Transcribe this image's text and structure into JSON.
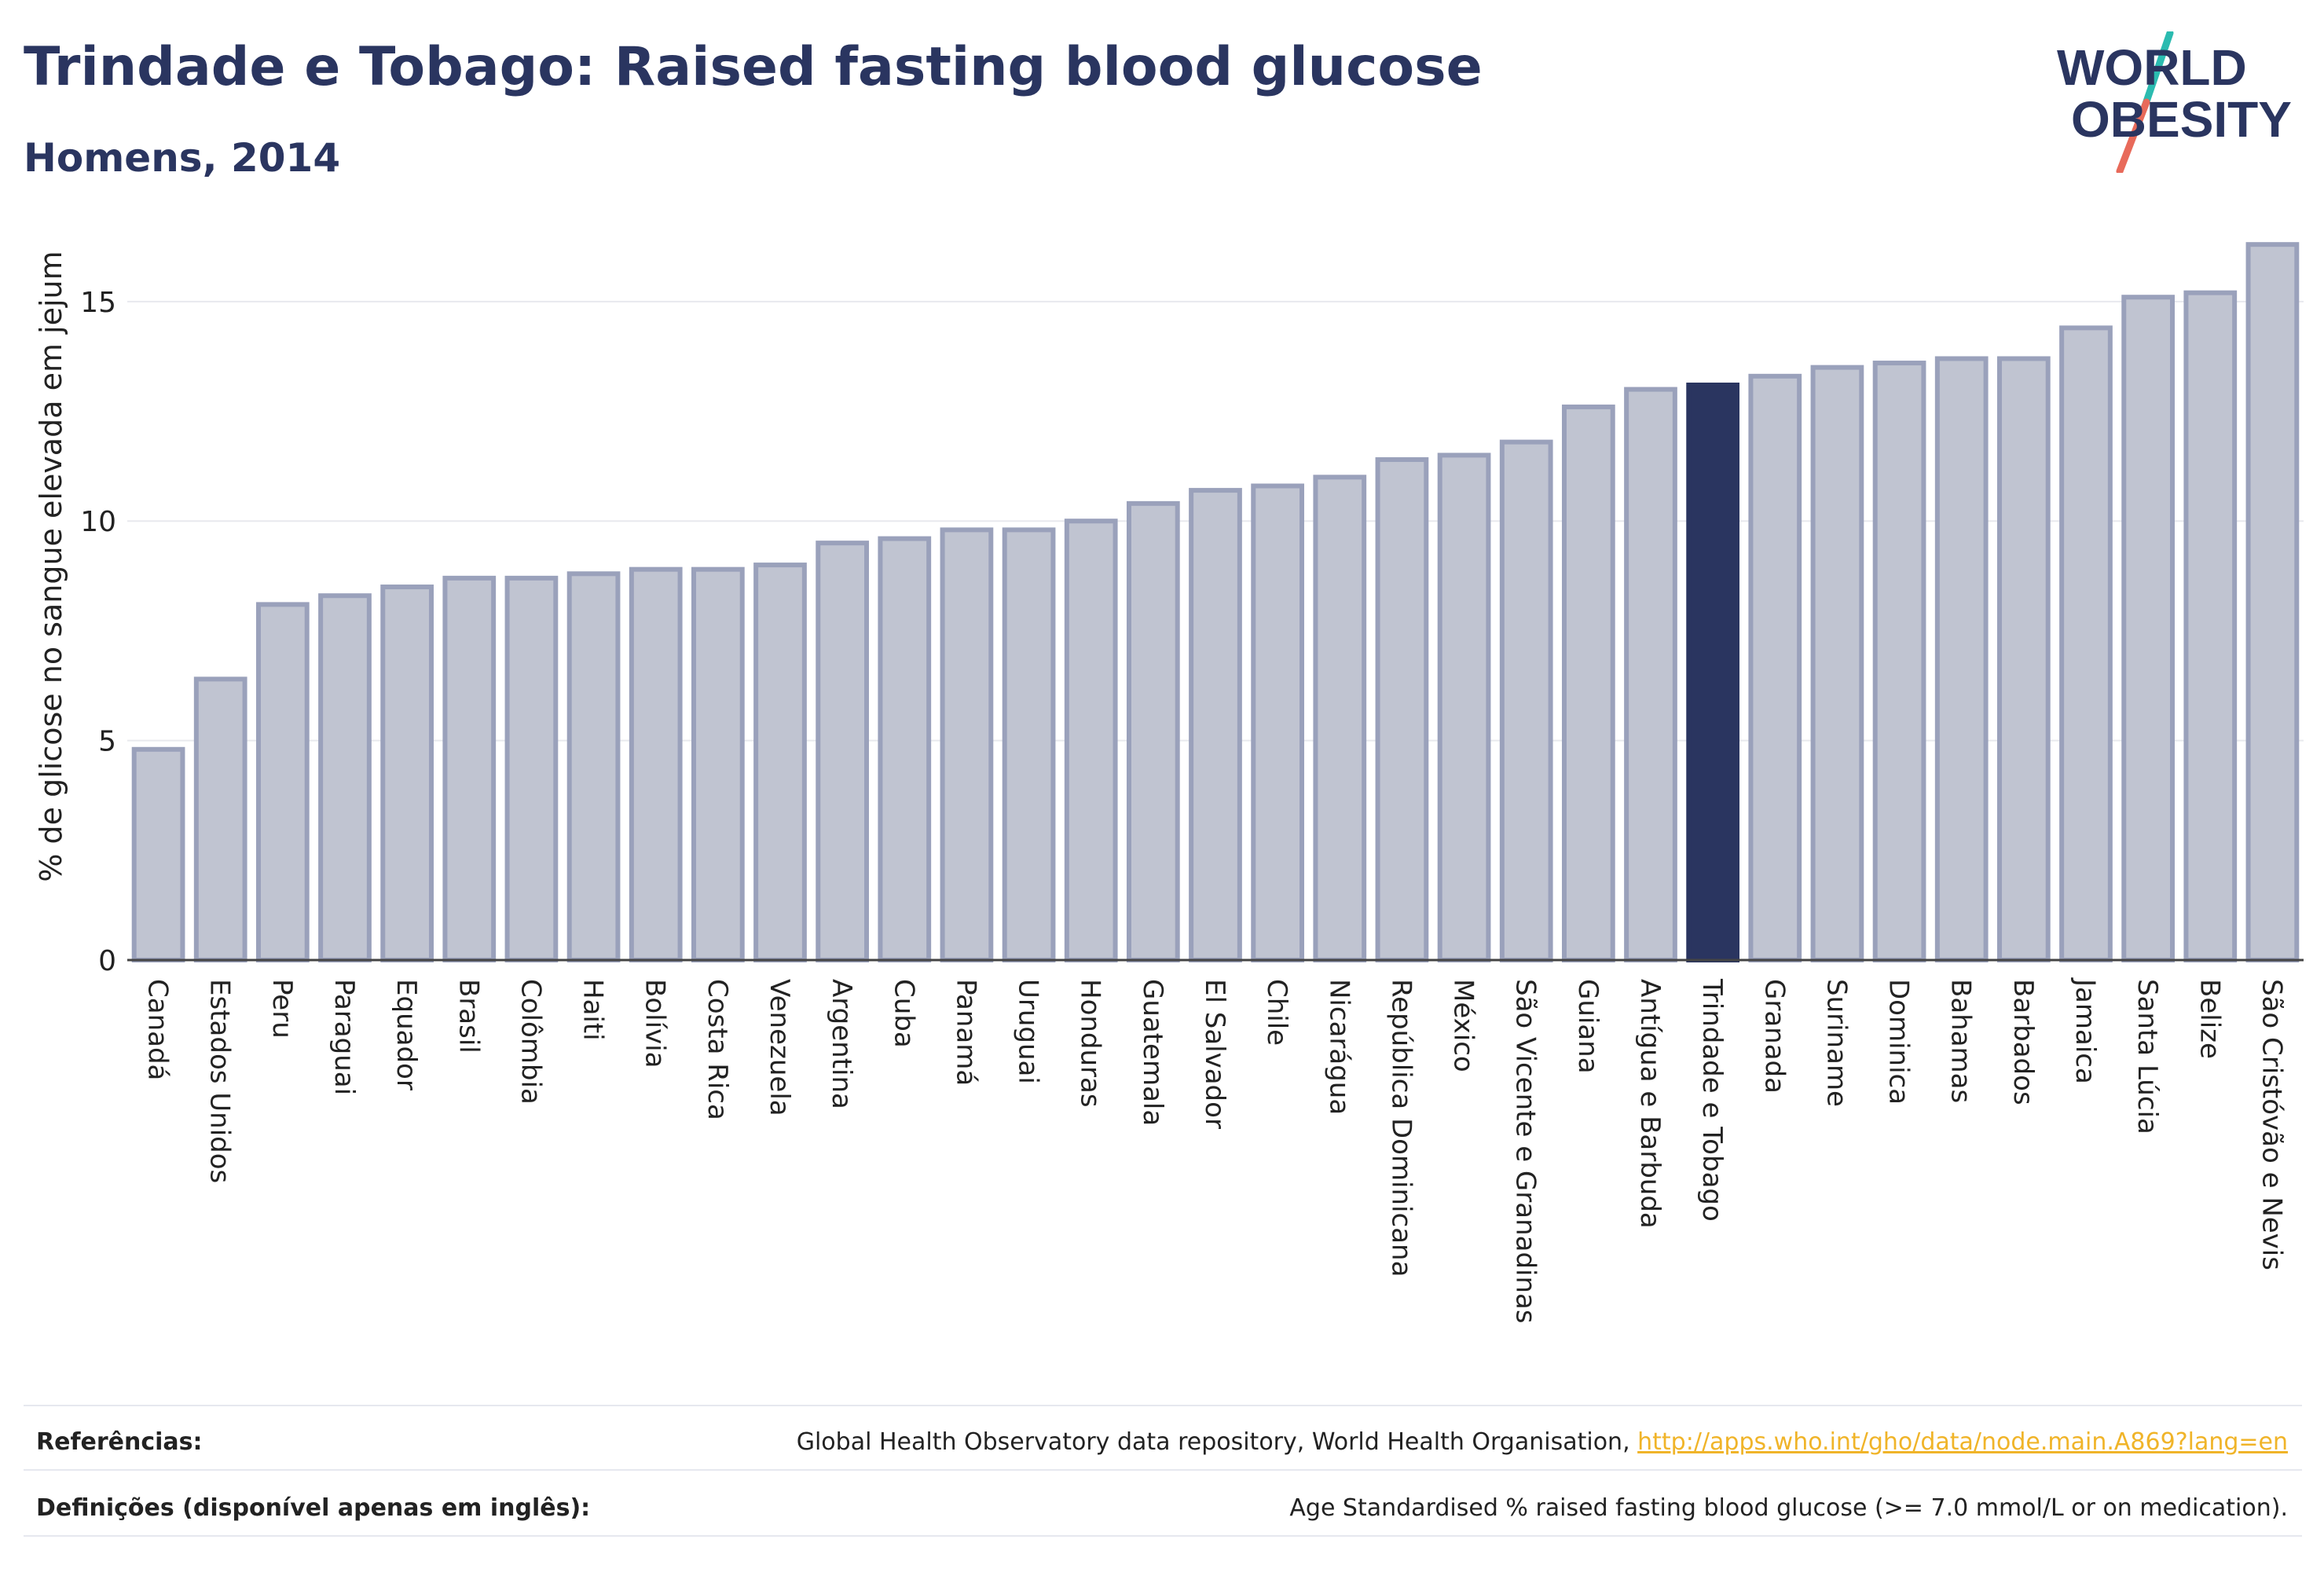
{
  "header": {
    "title": "Trindade e Tobago: Raised fasting blood glucose",
    "subtitle": "Homens, 2014"
  },
  "logo": {
    "line1": "WORLD",
    "line2": "OBESITY",
    "colors": {
      "text": "#2a3560",
      "slash_top": "#2bbbb0",
      "slash_bottom": "#e86a5a"
    }
  },
  "chart_data": {
    "type": "bar",
    "ylabel": "% de glicose no sangue elevada em jejum",
    "ylim": [
      0,
      16.5
    ],
    "yticks": [
      0,
      5,
      10,
      15
    ],
    "grid": true,
    "highlight": "Trindade e Tobago",
    "colors": {
      "bar": "#c0c4d1",
      "bar_border": "#9aa1bb",
      "highlight": "#2a3560",
      "grid": "#e8e9ee"
    },
    "categories": [
      "Canadá",
      "Estados Unidos",
      "Peru",
      "Paraguai",
      "Equador",
      "Brasil",
      "Colômbia",
      "Haiti",
      "Bolívia",
      "Costa Rica",
      "Venezuela",
      "Argentina",
      "Cuba",
      "Panamá",
      "Uruguai",
      "Honduras",
      "Guatemala",
      "El Salvador",
      "Chile",
      "Nicarágua",
      "República Dominicana",
      "México",
      "São Vicente e Granadinas",
      "Guiana",
      "Antígua e Barbuda",
      "Trindade e Tobago",
      "Granada",
      "Suriname",
      "Dominica",
      "Bahamas",
      "Barbados",
      "Jamaica",
      "Santa Lúcia",
      "Belize",
      "São Cristóvão e Nevis"
    ],
    "values": [
      4.8,
      6.4,
      8.1,
      8.3,
      8.5,
      8.7,
      8.7,
      8.8,
      8.9,
      8.9,
      9.0,
      9.5,
      9.6,
      9.8,
      9.8,
      10.0,
      10.4,
      10.7,
      10.8,
      11.0,
      11.4,
      11.5,
      11.8,
      12.6,
      13.0,
      13.1,
      13.3,
      13.5,
      13.6,
      13.7,
      13.7,
      14.4,
      15.1,
      15.2,
      16.3
    ]
  },
  "footer": {
    "references_label": "Referências:",
    "references_text": "Global Health Observatory data repository, World Health Organisation, ",
    "references_link": "http://apps.who.int/gho/data/node.main.A869?lang=en",
    "definitions_label": "Definições (disponível apenas em inglês):",
    "definitions_text": "Age Standardised % raised fasting blood glucose (>= 7.0 mmol/L or on medication)."
  }
}
